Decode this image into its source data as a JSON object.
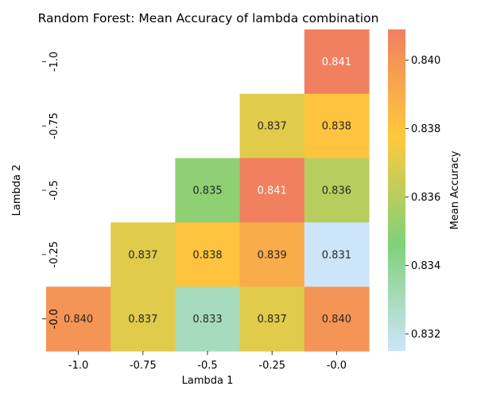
{
  "chart_data": {
    "type": "heatmap",
    "title": "Random Forest: Mean Accuracy of lambda combination",
    "xlabel": "Lambda 1",
    "ylabel": "Lambda 2",
    "x_categories": [
      "-1.0",
      "-0.75",
      "-0.5",
      "-0.25",
      "-0.0"
    ],
    "y_categories": [
      "-1.0",
      "-0.75",
      "-0.5",
      "-0.25",
      "-0.0"
    ],
    "values": [
      [
        null,
        null,
        null,
        null,
        0.841
      ],
      [
        null,
        null,
        null,
        0.837,
        0.838
      ],
      [
        null,
        null,
        0.835,
        0.841,
        0.836
      ],
      [
        null,
        0.837,
        0.838,
        0.839,
        0.831
      ],
      [
        0.84,
        0.837,
        0.833,
        0.837,
        0.84
      ]
    ],
    "cell_labels": [
      [
        null,
        null,
        null,
        null,
        "0.841"
      ],
      [
        null,
        null,
        null,
        "0.837",
        "0.838"
      ],
      [
        null,
        null,
        "0.835",
        "0.841",
        "0.836"
      ],
      [
        null,
        "0.837",
        "0.838",
        "0.839",
        "0.831"
      ],
      [
        "0.840",
        "0.837",
        "0.833",
        "0.837",
        "0.840"
      ]
    ],
    "colorbar": {
      "label": "Mean Accuracy",
      "range": [
        0.8315,
        0.8409
      ],
      "ticks": [
        0.832,
        0.834,
        0.836,
        0.838,
        0.84
      ],
      "tick_labels": [
        "0.832",
        "0.834",
        "0.836",
        "0.838",
        "0.840"
      ],
      "colors": [
        "#cce5fa",
        "#7fd17a",
        "#ffc93c",
        "#f08060"
      ]
    },
    "grid": false
  }
}
